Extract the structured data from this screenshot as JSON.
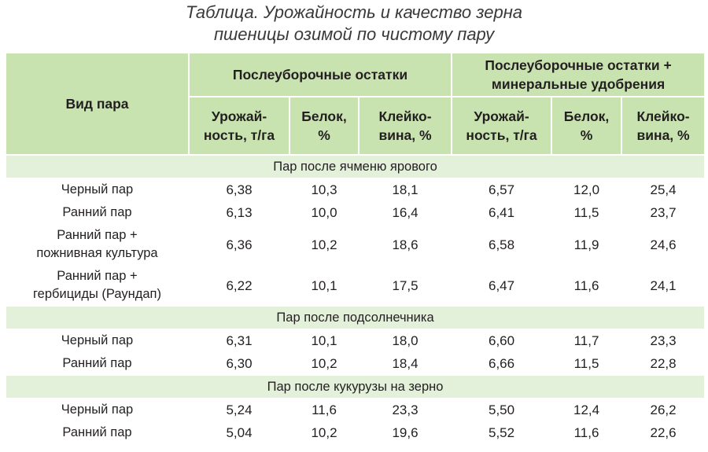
{
  "title": {
    "line1": "Таблица. Урожайность и качество зерна",
    "line2": "пшеницы озимой по чистому пару"
  },
  "header": {
    "kind": "Вид пара",
    "group1": "Послеуборочные остатки",
    "group2_line1": "Послеуборочные остатки +",
    "group2_line2": "минеральные удобрения",
    "col_yield_l1": "Урожай-",
    "col_yield_l2": "ность, т/га",
    "col_protein_l1": "Белок,",
    "col_protein_l2": "%",
    "col_gluten_l1": "Клейко-",
    "col_gluten_l2": "вина, %"
  },
  "sections": [
    {
      "title": "Пар после ячменю ярового",
      "rows": [
        {
          "name": "Черный пар",
          "v": [
            "6,38",
            "10,3",
            "18,1",
            "6,57",
            "12,0",
            "25,4"
          ]
        },
        {
          "name": "Ранний пар",
          "v": [
            "6,13",
            "10,0",
            "16,4",
            "6,41",
            "11,5",
            "23,7"
          ]
        },
        {
          "name_l1": "Ранний пар +",
          "name_l2": "пожнивная культура",
          "v": [
            "6,36",
            "10,2",
            "18,6",
            "6,58",
            "11,9",
            "24,6"
          ]
        },
        {
          "name_l1": "Ранний пар +",
          "name_l2": "гербициды (Раундап)",
          "v": [
            "6,22",
            "10,1",
            "17,5",
            "6,47",
            "11,6",
            "24,1"
          ]
        }
      ]
    },
    {
      "title": "Пар после подсолнечника",
      "rows": [
        {
          "name": "Черный пар",
          "v": [
            "6,31",
            "10,1",
            "18,0",
            "6,60",
            "11,7",
            "23,3"
          ]
        },
        {
          "name": "Ранний пар",
          "v": [
            "6,30",
            "10,2",
            "18,4",
            "6,66",
            "11,5",
            "22,8"
          ]
        }
      ]
    },
    {
      "title": "Пар после кукурузы на зерно",
      "rows": [
        {
          "name": "Черный пар",
          "v": [
            "5,24",
            "11,6",
            "23,3",
            "5,50",
            "12,4",
            "26,2"
          ]
        },
        {
          "name": "Ранний пар",
          "v": [
            "5,04",
            "10,2",
            "19,6",
            "5,52",
            "11,6",
            "22,6"
          ]
        }
      ]
    }
  ],
  "colors": {
    "header_bg": "#c8e3b0",
    "section_bg": "#e4f1da",
    "cell_bg": "#f2f8ec"
  }
}
